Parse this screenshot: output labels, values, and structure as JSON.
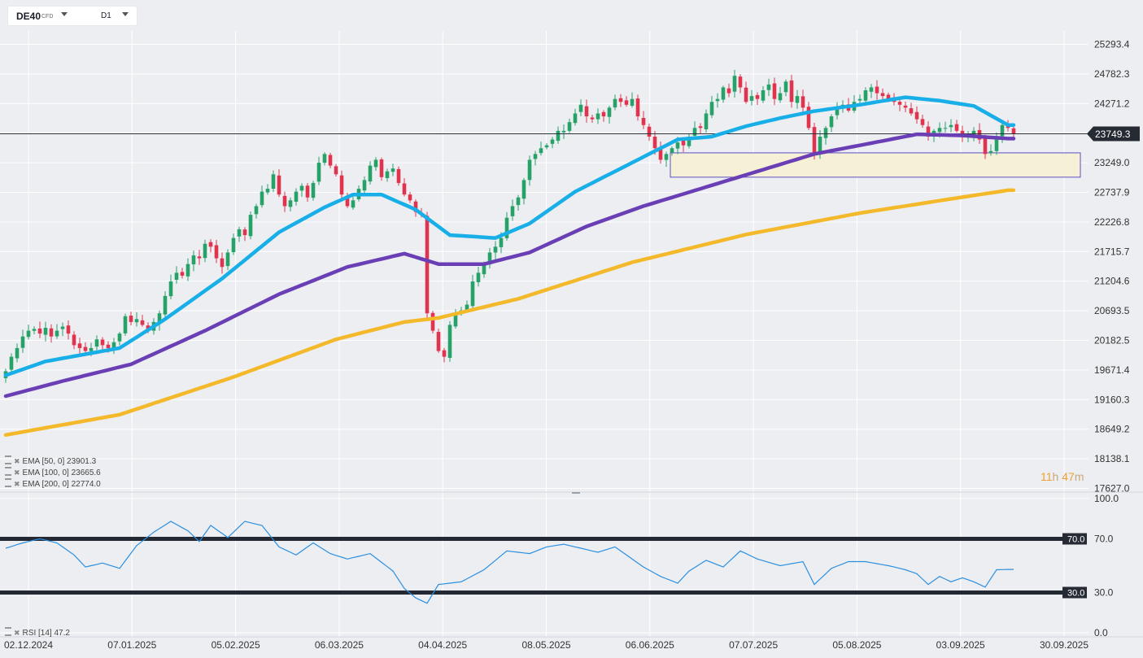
{
  "header": {
    "symbol": "DE40",
    "instrument_type": "CFD",
    "timeframe": "D1"
  },
  "indicators": [
    {
      "label": "EMA",
      "params": "[50, 0]",
      "value": "23901.3",
      "color": "#18aee8"
    },
    {
      "label": "EMA",
      "params": "[100, 0]",
      "value": "23665.6",
      "color": "#6a3fb5"
    },
    {
      "label": "EMA",
      "params": "[200, 0]",
      "value": "22774.0",
      "color": "#f4b92a"
    }
  ],
  "countdown": {
    "hours": "11",
    "h_unit": "h",
    "minutes": "47",
    "m_unit": "m"
  },
  "chart_data": [
    {
      "type": "candlestick",
      "instrument": "DE40",
      "y_ticks": [
        25293.4,
        24782.3,
        24271.2,
        23760.1,
        23249.0,
        22737.9,
        22226.8,
        21715.7,
        21204.6,
        20693.5,
        20182.5,
        19671.4,
        19160.3,
        18649.2,
        18138.1,
        17627.0
      ],
      "y_tick_labels": [
        "25293.4",
        "24782.3",
        "24271.2",
        "",
        "23249.0",
        "22737.9",
        "22226.8",
        "21715.7",
        "21204.6",
        "20693.5",
        "20182.5",
        "19671.4",
        "19160.3",
        "18649.2",
        "18138.1",
        "17627.0"
      ],
      "ylim": [
        17627.0,
        25293.4
      ],
      "x_tick_labels": [
        "02.12.2024",
        "07.01.2025",
        "05.02.2025",
        "06.03.2025",
        "04.04.2025",
        "08.05.2025",
        "06.06.2025",
        "07.07.2025",
        "05.08.2025",
        "03.09.2025",
        "30.09.2025"
      ],
      "current_price": 23749.3,
      "current_price_label": "23749.3",
      "up_color": "#26a269",
      "down_color": "#e0344e",
      "zone": {
        "low": 23000,
        "high": 23420,
        "fill": "#f6f0d6",
        "border": "#5b4fc4"
      },
      "close": [
        19650,
        19900,
        20050,
        20250,
        20350,
        20380,
        20300,
        20400,
        20250,
        20350,
        20420,
        20300,
        20100,
        20050,
        20000,
        20050,
        20200,
        20100,
        20050,
        20150,
        20300,
        20600,
        20500,
        20550,
        20450,
        20350,
        20500,
        20650,
        20950,
        21200,
        21350,
        21300,
        21500,
        21650,
        21600,
        21850,
        21800,
        21600,
        21450,
        21700,
        21950,
        22100,
        22000,
        22350,
        22500,
        22750,
        22800,
        23050,
        22700,
        22500,
        22600,
        22750,
        22850,
        22650,
        22900,
        23250,
        23400,
        23200,
        23050,
        22700,
        22500,
        22600,
        22800,
        22950,
        23200,
        23300,
        23000,
        23100,
        23150,
        22900,
        22700,
        22600,
        22400,
        22350,
        20650,
        20350,
        20000,
        19900,
        20450,
        20650,
        20700,
        20800,
        21200,
        21350,
        21500,
        21700,
        21800,
        21950,
        22300,
        22500,
        22650,
        22950,
        23300,
        23400,
        23500,
        23550,
        23650,
        23800,
        23800,
        23950,
        24100,
        24250,
        24050,
        24000,
        24100,
        24050,
        24200,
        24350,
        24300,
        24250,
        24350,
        24050,
        23900,
        23700,
        23500,
        23300,
        23400,
        23500,
        23600,
        23550,
        23700,
        23850,
        23850,
        24100,
        24300,
        24350,
        24550,
        24450,
        24750,
        24550,
        24300,
        24400,
        24350,
        24500,
        24600,
        24350,
        24450,
        24650,
        24300,
        24400,
        24200,
        23850,
        23400,
        23700,
        23850,
        24050,
        24200,
        24250,
        24150,
        24300,
        24350,
        24500,
        24550,
        24450,
        24400,
        24350,
        24300,
        24250,
        24200,
        24100,
        24000,
        23900,
        23700,
        23800,
        23850,
        23850,
        23900,
        23800,
        23700,
        23750,
        23800,
        23650,
        23400,
        23450,
        23700,
        23900,
        23850,
        23750
      ],
      "series": [
        {
          "name": "EMA [50, 0]",
          "color": "#18aee8",
          "anchors": [
            [
              0,
              19580
            ],
            [
              7,
              19820
            ],
            [
              20,
              20050
            ],
            [
              28,
              20550
            ],
            [
              38,
              21250
            ],
            [
              48,
              22050
            ],
            [
              56,
              22480
            ],
            [
              61,
              22700
            ],
            [
              66,
              22700
            ],
            [
              72,
              22440
            ],
            [
              78,
              22000
            ],
            [
              86,
              21950
            ],
            [
              92,
              22200
            ],
            [
              100,
              22750
            ],
            [
              110,
              23250
            ],
            [
              118,
              23650
            ],
            [
              124,
              23700
            ],
            [
              130,
              23880
            ],
            [
              136,
              24020
            ],
            [
              142,
              24140
            ],
            [
              150,
              24250
            ],
            [
              158,
              24380
            ],
            [
              164,
              24320
            ],
            [
              170,
              24230
            ],
            [
              176,
              23901
            ]
          ]
        },
        {
          "name": "EMA [100, 0]",
          "color": "#6a3fb5",
          "anchors": [
            [
              0,
              19220
            ],
            [
              10,
              19480
            ],
            [
              22,
              19770
            ],
            [
              35,
              20350
            ],
            [
              48,
              20980
            ],
            [
              60,
              21450
            ],
            [
              70,
              21680
            ],
            [
              76,
              21500
            ],
            [
              84,
              21500
            ],
            [
              92,
              21700
            ],
            [
              102,
              22150
            ],
            [
              112,
              22500
            ],
            [
              122,
              22800
            ],
            [
              132,
              23100
            ],
            [
              142,
              23400
            ],
            [
              150,
              23550
            ],
            [
              160,
              23740
            ],
            [
              168,
              23720
            ],
            [
              176,
              23666
            ]
          ]
        },
        {
          "name": "EMA [200, 0]",
          "color": "#f4b92a",
          "anchors": [
            [
              0,
              18550
            ],
            [
              20,
              18900
            ],
            [
              40,
              19550
            ],
            [
              58,
              20200
            ],
            [
              70,
              20500
            ],
            [
              76,
              20570
            ],
            [
              90,
              20900
            ],
            [
              110,
              21530
            ],
            [
              130,
              22010
            ],
            [
              150,
              22380
            ],
            [
              165,
              22610
            ],
            [
              176,
              22774
            ]
          ]
        }
      ]
    },
    {
      "type": "line",
      "name": "RSI",
      "label": "RSI",
      "params": "[14]",
      "value": 47.2,
      "value_label": "47.2",
      "color": "#2b8fe0",
      "ylim": [
        0,
        100
      ],
      "y_tick_labels": [
        "100.0",
        "70.0",
        "30.0",
        "0.0"
      ],
      "levels": [
        70,
        30
      ],
      "level_labels": [
        "70.0",
        "30.0"
      ],
      "anchors": [
        [
          0,
          63
        ],
        [
          3,
          67
        ],
        [
          6,
          70
        ],
        [
          9,
          67
        ],
        [
          12,
          58
        ],
        [
          14,
          49
        ],
        [
          17,
          52
        ],
        [
          20,
          48
        ],
        [
          23,
          65
        ],
        [
          26,
          75
        ],
        [
          29,
          83
        ],
        [
          32,
          76
        ],
        [
          34,
          68
        ],
        [
          36,
          80
        ],
        [
          39,
          71
        ],
        [
          42,
          83
        ],
        [
          45,
          80
        ],
        [
          48,
          64
        ],
        [
          51,
          58
        ],
        [
          54,
          67
        ],
        [
          57,
          59
        ],
        [
          60,
          55
        ],
        [
          64,
          59
        ],
        [
          68,
          46
        ],
        [
          70,
          33
        ],
        [
          72,
          26
        ],
        [
          74,
          22
        ],
        [
          76,
          36
        ],
        [
          80,
          38
        ],
        [
          84,
          47
        ],
        [
          88,
          61
        ],
        [
          92,
          59
        ],
        [
          95,
          64
        ],
        [
          98,
          66
        ],
        [
          101,
          63
        ],
        [
          104,
          60
        ],
        [
          107,
          64
        ],
        [
          110,
          55
        ],
        [
          112,
          49
        ],
        [
          115,
          42
        ],
        [
          118,
          37
        ],
        [
          120,
          46
        ],
        [
          123,
          54
        ],
        [
          126,
          49
        ],
        [
          129,
          61
        ],
        [
          132,
          55
        ],
        [
          136,
          50
        ],
        [
          140,
          53
        ],
        [
          142,
          36
        ],
        [
          145,
          48
        ],
        [
          148,
          53
        ],
        [
          151,
          53
        ],
        [
          155,
          50
        ],
        [
          158,
          47
        ],
        [
          160,
          44
        ],
        [
          162,
          36
        ],
        [
          164,
          42
        ],
        [
          166,
          38
        ],
        [
          168,
          41
        ],
        [
          170,
          38
        ],
        [
          172,
          34
        ],
        [
          174,
          47
        ],
        [
          176,
          47.2
        ]
      ]
    }
  ]
}
